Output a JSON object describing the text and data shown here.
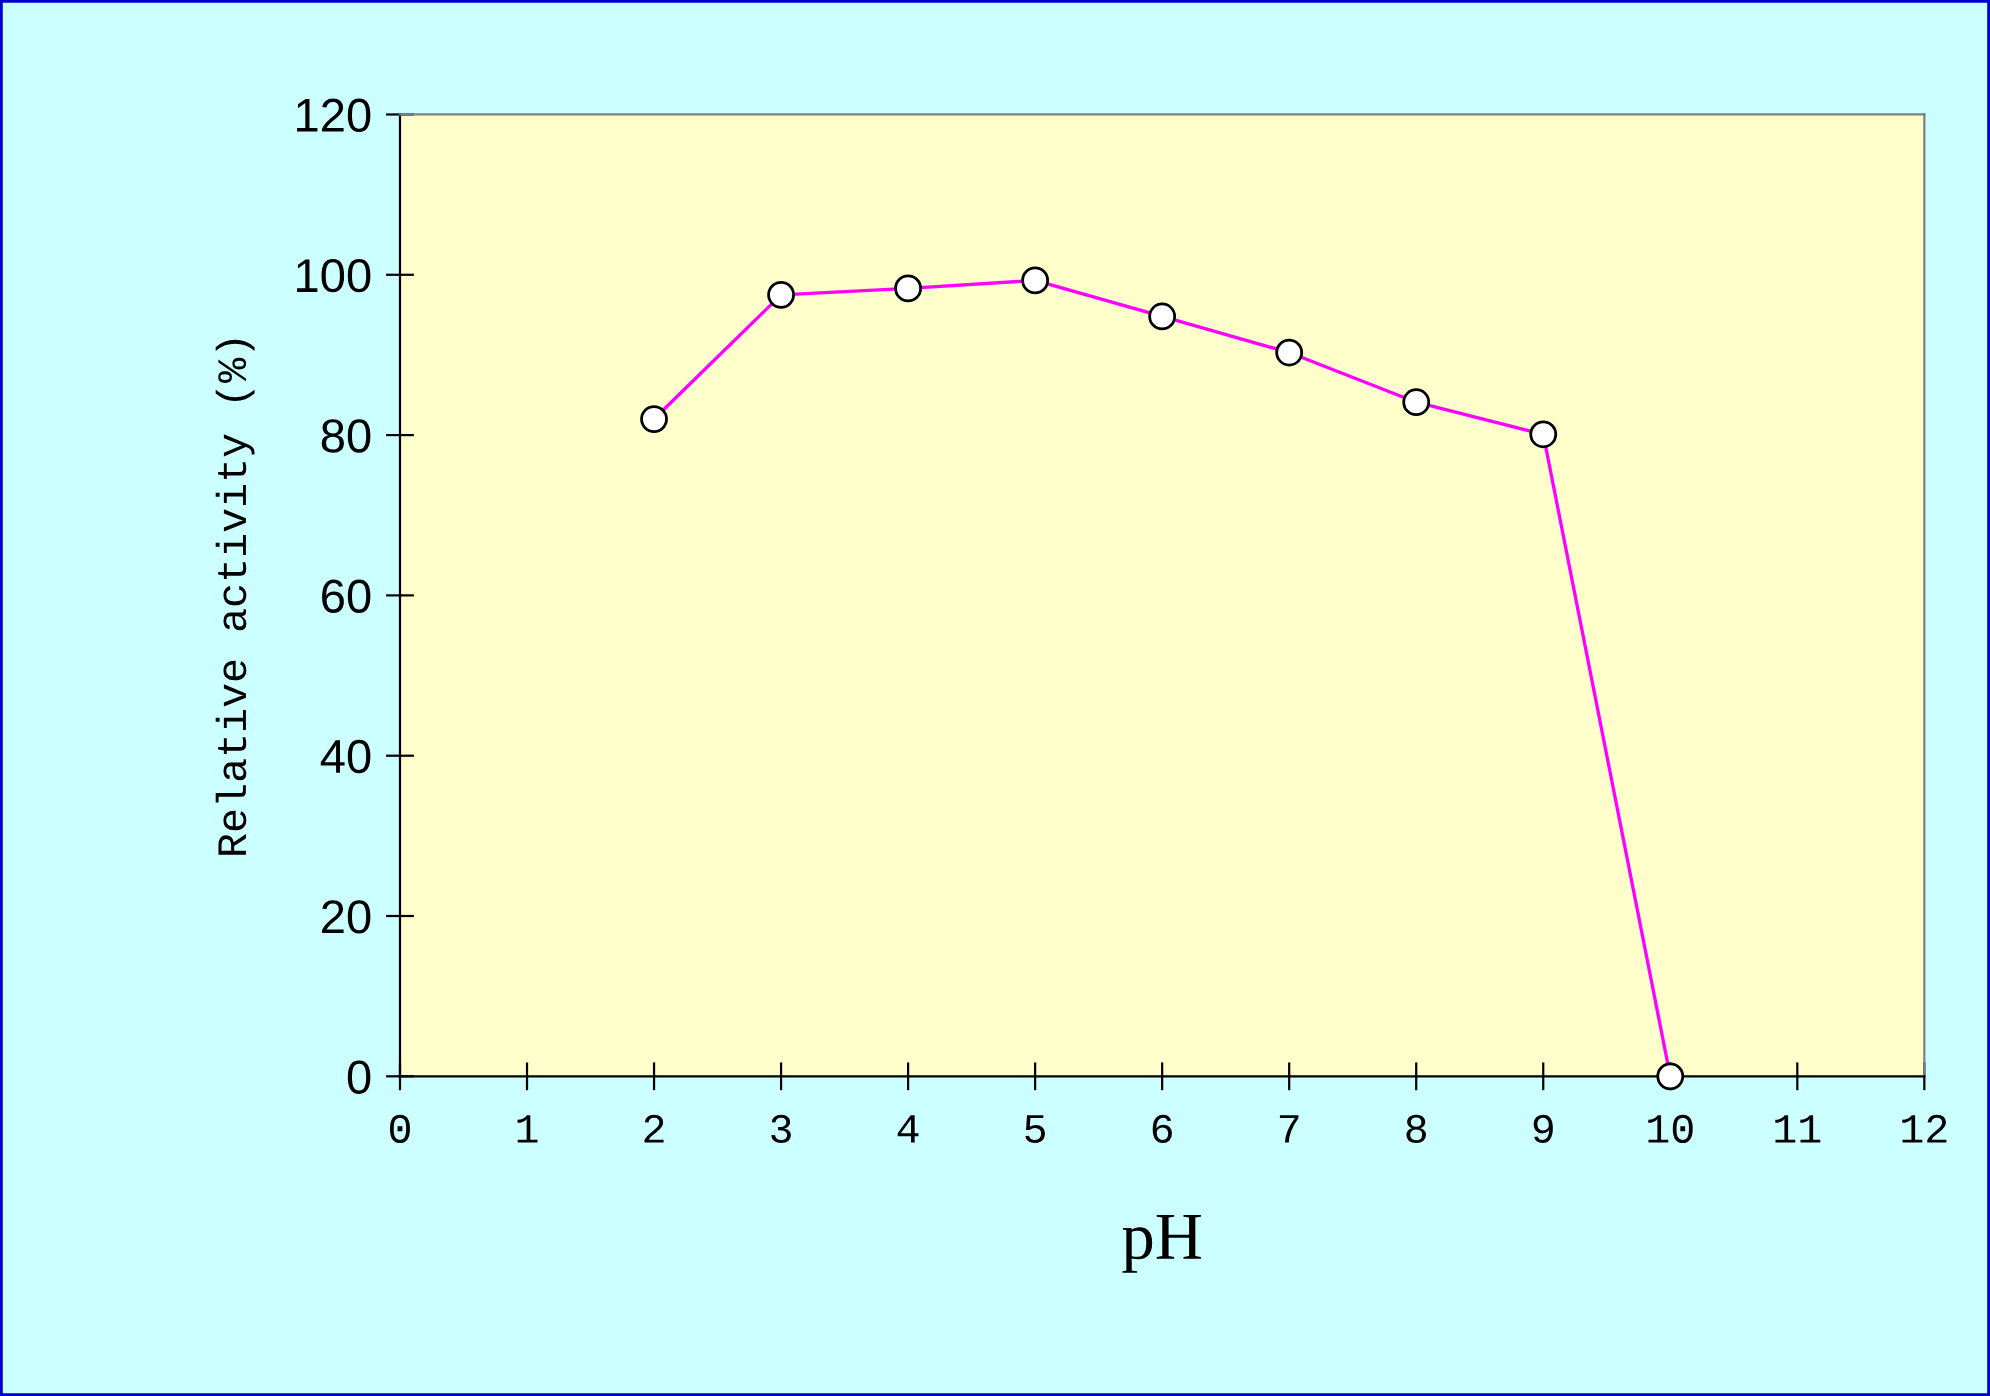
{
  "chart_data": {
    "type": "line",
    "xlabel": "pH",
    "ylabel": "Relative activity (%)",
    "x": [
      2,
      3,
      4,
      5,
      6,
      7,
      8,
      9,
      10
    ],
    "series": [
      {
        "color": "#ff00ff",
        "values": [
          82,
          97.5,
          98.3,
          99.3,
          94.8,
          90.3,
          84.1,
          80.1,
          0
        ]
      }
    ],
    "xlim": [
      0,
      12
    ],
    "xticks": [
      0,
      1,
      2,
      3,
      4,
      5,
      6,
      7,
      8,
      9,
      10,
      11,
      12
    ],
    "ylim": [
      0,
      120
    ],
    "yticks": [
      0,
      20,
      40,
      60,
      80,
      100,
      120
    ],
    "marker": "circle",
    "line_style": "solid",
    "grid": false,
    "legend": false
  }
}
